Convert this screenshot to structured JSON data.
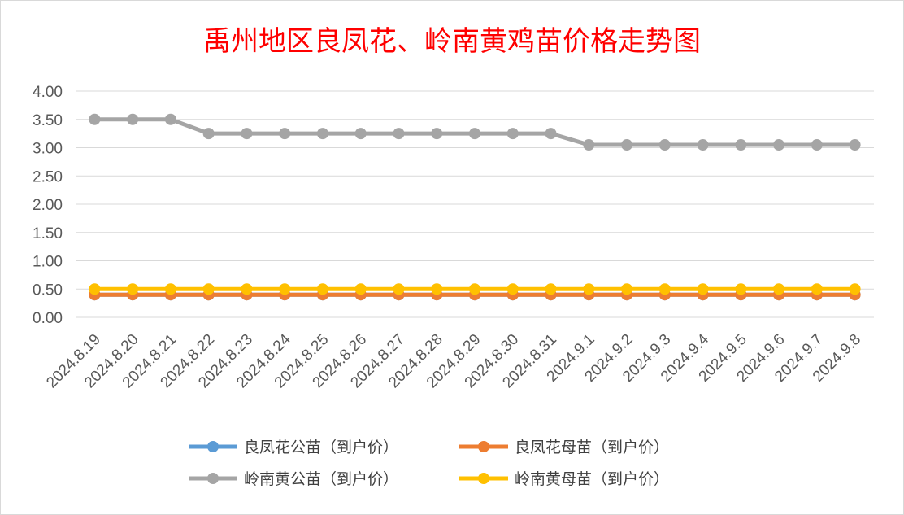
{
  "chart_data": {
    "type": "line",
    "title": "禹州地区良凤花、岭南黄鸡苗价格走势图",
    "categories": [
      "2024.8.19",
      "2024.8.20",
      "2024.8.21",
      "2024.8.22",
      "2024.8.23",
      "2024.8.24",
      "2024.8.25",
      "2024.8.26",
      "2024.8.27",
      "2024.8.28",
      "2024.8.29",
      "2024.8.30",
      "2024.8.31",
      "2024.9.1",
      "2024.9.2",
      "2024.9.3",
      "2024.9.4",
      "2024.9.5",
      "2024.9.6",
      "2024.9.7",
      "2024.9.8"
    ],
    "ylim": [
      0,
      4
    ],
    "yticks": [
      "0.00",
      "0.50",
      "1.00",
      "1.50",
      "2.00",
      "2.50",
      "3.00",
      "3.50",
      "4.00"
    ],
    "grid": true,
    "legend_position": "bottom",
    "series": [
      {
        "name": "良凤花公苗（到户价）",
        "color": "#5b9bd5",
        "values": [
          0.4,
          0.4,
          0.4,
          0.4,
          0.4,
          0.4,
          0.4,
          0.4,
          0.4,
          0.4,
          0.4,
          0.4,
          0.4,
          0.4,
          0.4,
          0.4,
          0.4,
          0.4,
          0.4,
          0.4,
          0.4
        ]
      },
      {
        "name": "良凤花母苗（到户价）",
        "color": "#ed7d31",
        "values": [
          0.4,
          0.4,
          0.4,
          0.4,
          0.4,
          0.4,
          0.4,
          0.4,
          0.4,
          0.4,
          0.4,
          0.4,
          0.4,
          0.4,
          0.4,
          0.4,
          0.4,
          0.4,
          0.4,
          0.4,
          0.4
        ]
      },
      {
        "name": "岭南黄公苗（到户价）",
        "color": "#a5a5a5",
        "values": [
          3.5,
          3.5,
          3.5,
          3.25,
          3.25,
          3.25,
          3.25,
          3.25,
          3.25,
          3.25,
          3.25,
          3.25,
          3.25,
          3.05,
          3.05,
          3.05,
          3.05,
          3.05,
          3.05,
          3.05,
          3.05
        ]
      },
      {
        "name": "岭南黄母苗（到户价）",
        "color": "#ffc000",
        "values": [
          0.5,
          0.5,
          0.5,
          0.5,
          0.5,
          0.5,
          0.5,
          0.5,
          0.5,
          0.5,
          0.5,
          0.5,
          0.5,
          0.5,
          0.5,
          0.5,
          0.5,
          0.5,
          0.5,
          0.5,
          0.5
        ]
      }
    ]
  }
}
